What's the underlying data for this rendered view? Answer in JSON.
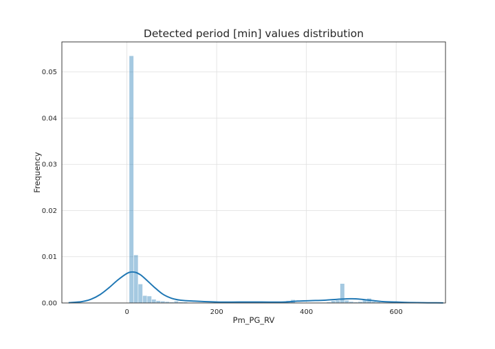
{
  "chart_data": {
    "type": "bar",
    "title": "Detected period [min] values distribution",
    "xlabel": "Pm_PG_RV",
    "ylabel": "Frequency",
    "xlim": [
      -145,
      710
    ],
    "ylim": [
      0,
      0.0565
    ],
    "xticks": [
      0,
      200,
      400,
      600
    ],
    "yticks": [
      0.0,
      0.01,
      0.02,
      0.03,
      0.04,
      0.05
    ],
    "xtick_labels": [
      "0",
      "200",
      "400",
      "600"
    ],
    "ytick_labels": [
      "0.00",
      "0.01",
      "0.02",
      "0.03",
      "0.04",
      "0.05"
    ],
    "grid": true,
    "bin_width": 10,
    "histogram": [
      {
        "x0": 5,
        "x1": 15,
        "value": 0.0535
      },
      {
        "x0": 15,
        "x1": 25,
        "value": 0.0104
      },
      {
        "x0": 25,
        "x1": 35,
        "value": 0.0041
      },
      {
        "x0": 35,
        "x1": 45,
        "value": 0.0016
      },
      {
        "x0": 45,
        "x1": 55,
        "value": 0.0015
      },
      {
        "x0": 55,
        "x1": 65,
        "value": 0.0008
      },
      {
        "x0": 65,
        "x1": 75,
        "value": 0.0005
      },
      {
        "x0": 75,
        "x1": 85,
        "value": 0.0004
      },
      {
        "x0": 85,
        "x1": 95,
        "value": 0.0003
      },
      {
        "x0": 95,
        "x1": 105,
        "value": 0.0002
      },
      {
        "x0": 105,
        "x1": 115,
        "value": 0.0004
      },
      {
        "x0": 115,
        "x1": 125,
        "value": 0.0002
      },
      {
        "x0": 125,
        "x1": 135,
        "value": 0.0002
      },
      {
        "x0": 145,
        "x1": 155,
        "value": 0.0001
      },
      {
        "x0": 195,
        "x1": 205,
        "value": 0.0002
      },
      {
        "x0": 295,
        "x1": 305,
        "value": 0.0001
      },
      {
        "x0": 345,
        "x1": 355,
        "value": 0.0001
      },
      {
        "x0": 355,
        "x1": 365,
        "value": 0.0005
      },
      {
        "x0": 365,
        "x1": 375,
        "value": 0.0007
      },
      {
        "x0": 445,
        "x1": 455,
        "value": 0.0002
      },
      {
        "x0": 455,
        "x1": 465,
        "value": 0.0005
      },
      {
        "x0": 465,
        "x1": 475,
        "value": 0.0006
      },
      {
        "x0": 475,
        "x1": 485,
        "value": 0.0042
      },
      {
        "x0": 485,
        "x1": 495,
        "value": 0.0006
      },
      {
        "x0": 495,
        "x1": 505,
        "value": 0.0003
      },
      {
        "x0": 505,
        "x1": 515,
        "value": 0.0002
      },
      {
        "x0": 515,
        "x1": 525,
        "value": 0.0003
      },
      {
        "x0": 525,
        "x1": 535,
        "value": 0.0006
      },
      {
        "x0": 535,
        "x1": 545,
        "value": 0.001
      },
      {
        "x0": 545,
        "x1": 555,
        "value": 0.0003
      },
      {
        "x0": 555,
        "x1": 565,
        "value": 0.0002
      }
    ],
    "kde": {
      "x": [
        -130,
        -100,
        -80,
        -60,
        -40,
        -20,
        0,
        10,
        20,
        30,
        40,
        60,
        80,
        100,
        120,
        150,
        200,
        250,
        300,
        350,
        380,
        410,
        440,
        470,
        490,
        510,
        530,
        550,
        570,
        600,
        630,
        660,
        690,
        705
      ],
      "y": [
        5e-05,
        0.0003,
        0.0008,
        0.0018,
        0.0033,
        0.005,
        0.0064,
        0.0067,
        0.0066,
        0.0061,
        0.0053,
        0.0035,
        0.0019,
        0.001,
        0.0006,
        0.0004,
        0.0002,
        0.0002,
        0.0002,
        0.0002,
        0.0004,
        0.0005,
        0.0006,
        0.0008,
        0.0009,
        0.0009,
        0.0007,
        0.0005,
        0.0003,
        0.0002,
        0.0001,
        5e-05,
        3e-05,
        2e-05
      ]
    },
    "colors": {
      "bar": "#1f77b4",
      "kde": "#1f77b4",
      "grid": "#dedede",
      "frame": "#262626",
      "text": "#262626"
    }
  }
}
